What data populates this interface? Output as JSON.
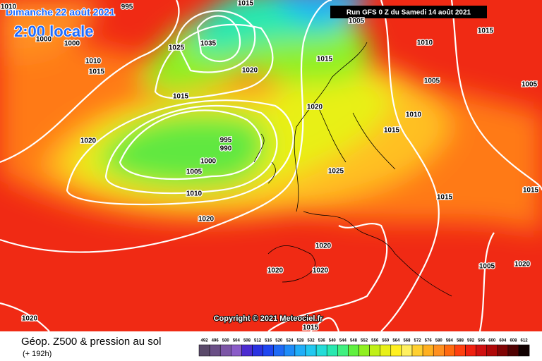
{
  "header": {
    "date": "Dimanche 22 août 2021",
    "time": "2:00 locale",
    "run": "Run GFS 0 Z du Samedi 14 août 2021"
  },
  "copyright": "Copyright © 2021 Meteociel.fr",
  "footer": {
    "title": "Géop. Z500 & pression au sol",
    "lead": "(+ 192h)"
  },
  "isobar_labels": [
    1010,
    995,
    1015,
    1000,
    1000,
    1010,
    1015,
    1035,
    1025,
    1020,
    1015,
    1015,
    1020,
    1015,
    1010,
    1005,
    1005,
    1020,
    1010,
    1015,
    995,
    990,
    1000,
    1005,
    1010,
    1025,
    1020,
    1015,
    1005,
    1020,
    1020,
    1020,
    1020,
    1005,
    1020,
    1005,
    1015,
    1015
  ],
  "scale": {
    "labels": [
      492,
      496,
      500,
      504,
      508,
      512,
      516,
      520,
      524,
      528,
      532,
      536,
      540,
      544,
      548,
      552,
      556,
      560,
      564,
      568,
      572,
      576,
      580,
      584,
      588,
      592,
      596,
      600,
      604,
      608,
      612
    ],
    "colors": [
      "#5a4a6a",
      "#6a4f86",
      "#7c56a6",
      "#8a5cc8",
      "#4b2bd0",
      "#2a32e0",
      "#1e46f0",
      "#1e6af5",
      "#1e8cf8",
      "#20aef8",
      "#22c8f0",
      "#24dcd8",
      "#28e8b0",
      "#40f080",
      "#60f040",
      "#90f020",
      "#c0f018",
      "#e8f018",
      "#fff020",
      "#fff060",
      "#ffd030",
      "#ffb020",
      "#ff9020",
      "#ff6a10",
      "#ff4010",
      "#f02010",
      "#d01010",
      "#b00808",
      "#800404",
      "#500202",
      "#100000"
    ]
  }
}
